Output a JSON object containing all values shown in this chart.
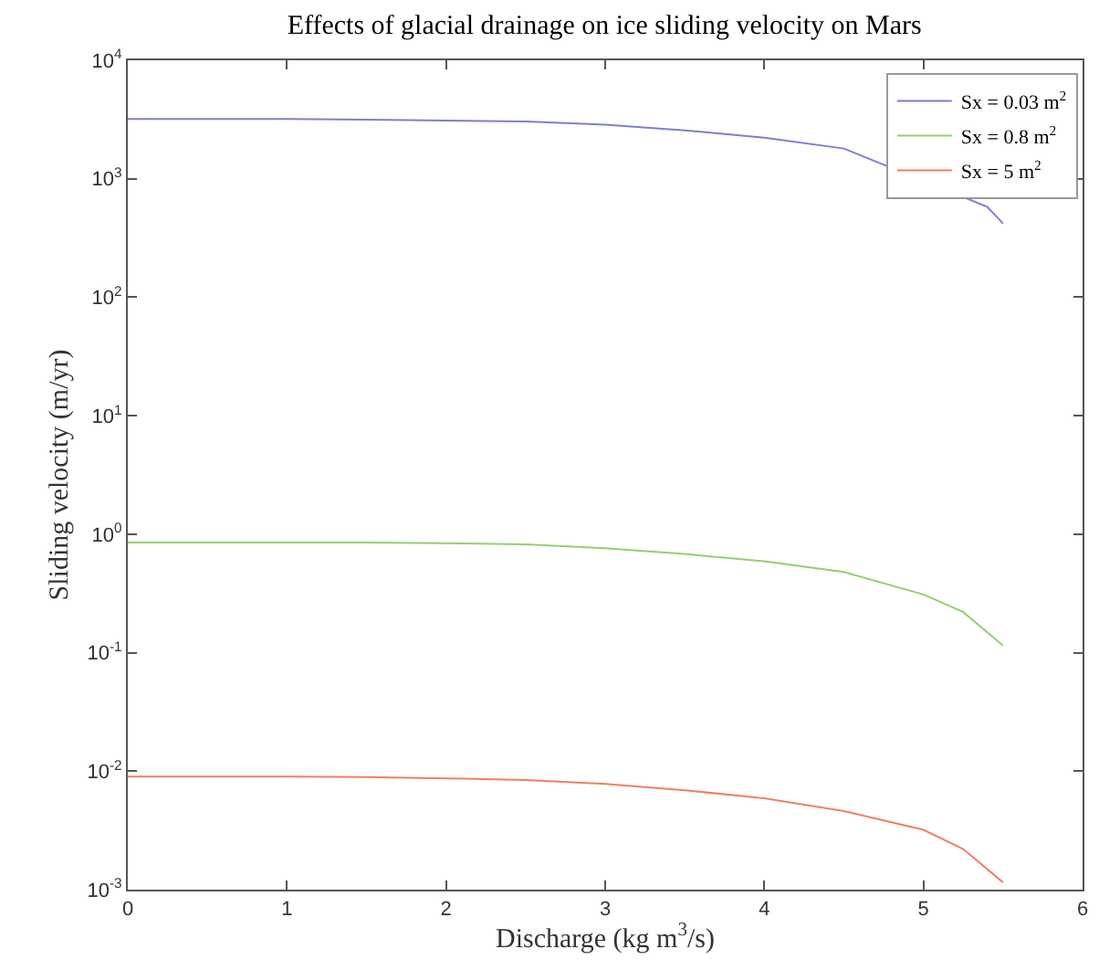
{
  "chart_data": {
    "type": "line",
    "title": "Effects of glacial drainage on ice sliding velocity on Mars",
    "xlabel": "Discharge (kg m$^{3}$/s)",
    "ylabel": "Sliding velocity (m/yr)",
    "x": [
      0,
      0.5,
      1,
      1.5,
      2,
      2.5,
      3,
      3.5,
      4,
      4.5,
      5,
      5.25,
      5.5
    ],
    "series": [
      {
        "name": "Sx = 0.03 m$^{2}$",
        "color": "#7b7fd4",
        "x": [
          0,
          0.5,
          1,
          1.5,
          2,
          2.5,
          3,
          3.5,
          4,
          4.5,
          5.4,
          5.5
        ],
        "values": [
          3200,
          3200,
          3200,
          3150,
          3100,
          3050,
          2860,
          2560,
          2220,
          1800,
          580,
          420
        ]
      },
      {
        "name": "Sx = 0.8 m$^{2}$",
        "color": "#93cf73",
        "values": [
          0.85,
          0.85,
          0.85,
          0.85,
          0.84,
          0.82,
          0.76,
          0.68,
          0.59,
          0.48,
          0.31,
          0.22,
          0.115
        ]
      },
      {
        "name": "Sx = 5 m$^{2}$",
        "color": "#f0805f",
        "values": [
          0.009,
          0.009,
          0.009,
          0.0089,
          0.0087,
          0.0084,
          0.0078,
          0.0069,
          0.0059,
          0.0046,
          0.0032,
          0.0022,
          0.00115
        ]
      }
    ],
    "log": "y",
    "xlim": [
      0,
      6
    ],
    "xticks": [
      0,
      1,
      2,
      3,
      4,
      5,
      6
    ],
    "ylim": [
      0.001,
      10000
    ],
    "yticks": [
      {
        "value": 0.001,
        "label": "10$^{-3}$"
      },
      {
        "value": 0.01,
        "label": "10$^{-2}$"
      },
      {
        "value": 0.1,
        "label": "10$^{-1}$"
      },
      {
        "value": 1,
        "label": "10$^{0}$"
      },
      {
        "value": 10,
        "label": "10$^{1}$"
      },
      {
        "value": 100,
        "label": "10$^{2}$"
      },
      {
        "value": 1000,
        "label": "10$^{3}$"
      },
      {
        "value": 10000,
        "label": "10$^{4}$"
      }
    ],
    "legend": "top right"
  }
}
